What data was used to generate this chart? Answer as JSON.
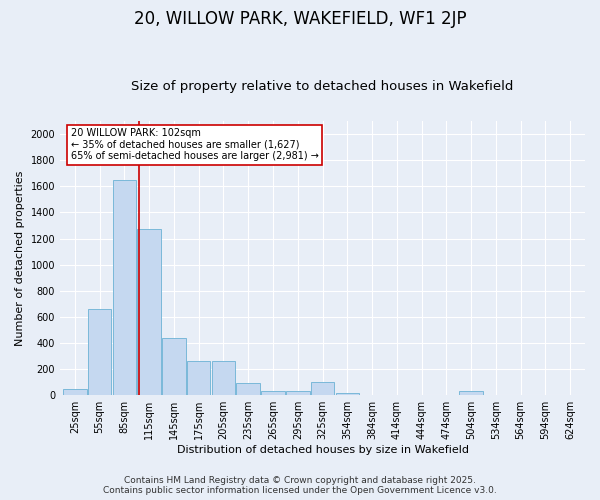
{
  "title": "20, WILLOW PARK, WAKEFIELD, WF1 2JP",
  "subtitle": "Size of property relative to detached houses in Wakefield",
  "xlabel": "Distribution of detached houses by size in Wakefield",
  "ylabel": "Number of detached properties",
  "categories": [
    "25sqm",
    "55sqm",
    "85sqm",
    "115sqm",
    "145sqm",
    "175sqm",
    "205sqm",
    "235sqm",
    "265sqm",
    "295sqm",
    "325sqm",
    "354sqm",
    "384sqm",
    "414sqm",
    "444sqm",
    "474sqm",
    "504sqm",
    "534sqm",
    "564sqm",
    "594sqm",
    "624sqm"
  ],
  "values": [
    50,
    660,
    1650,
    1270,
    440,
    260,
    260,
    90,
    35,
    30,
    100,
    15,
    5,
    0,
    0,
    0,
    30,
    0,
    0,
    0,
    0
  ],
  "bar_color": "#c5d8f0",
  "bar_edge_color": "#7ab8d9",
  "ylim": [
    0,
    2100
  ],
  "yticks": [
    0,
    200,
    400,
    600,
    800,
    1000,
    1200,
    1400,
    1600,
    1800,
    2000
  ],
  "vline_color": "#cc0000",
  "vline_pos": 2.57,
  "annotation_text": "20 WILLOW PARK: 102sqm\n← 35% of detached houses are smaller (1,627)\n65% of semi-detached houses are larger (2,981) →",
  "annotation_box_color": "#ffffff",
  "annotation_box_edge": "#cc0000",
  "footer_line1": "Contains HM Land Registry data © Crown copyright and database right 2025.",
  "footer_line2": "Contains public sector information licensed under the Open Government Licence v3.0.",
  "background_color": "#e8eef7",
  "plot_bg_color": "#e8eef7",
  "title_fontsize": 12,
  "subtitle_fontsize": 9.5,
  "label_fontsize": 8,
  "tick_fontsize": 7,
  "annotation_fontsize": 7,
  "footer_fontsize": 6.5
}
